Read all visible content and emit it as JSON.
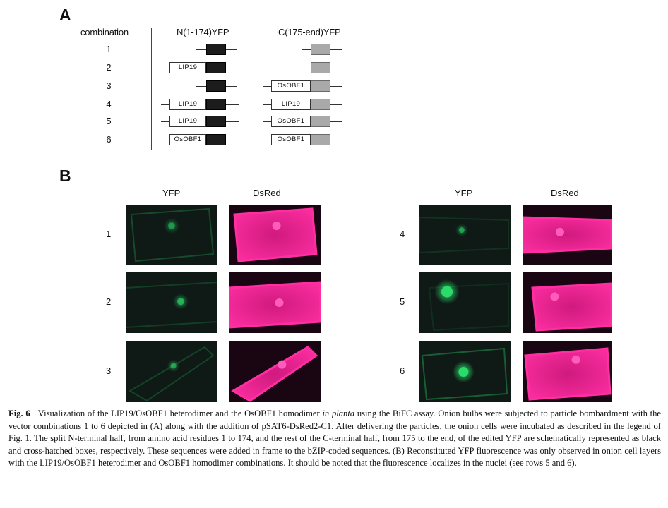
{
  "panel_a": {
    "letter": "A",
    "headers": {
      "combination": "combination",
      "n_half": "N(1-174)YFP",
      "c_half": "C(175-end)YFP"
    },
    "rows": [
      {
        "num": "1",
        "n_fusion": "",
        "c_fusion": ""
      },
      {
        "num": "2",
        "n_fusion": "LIP19",
        "c_fusion": ""
      },
      {
        "num": "3",
        "n_fusion": "",
        "c_fusion": "OsOBF1"
      },
      {
        "num": "4",
        "n_fusion": "LIP19",
        "c_fusion": "LIP19"
      },
      {
        "num": "5",
        "n_fusion": "LIP19",
        "c_fusion": "OsOBF1"
      },
      {
        "num": "6",
        "n_fusion": "OsOBF1",
        "c_fusion": "OsOBF1"
      }
    ],
    "colors": {
      "n_yfp": "#1c1c1c",
      "c_yfp": "#a9a9a9"
    }
  },
  "panel_b": {
    "letter": "B",
    "column_labels": {
      "yfp": "YFP",
      "dsred": "DsRed"
    },
    "rows": [
      {
        "num": "1"
      },
      {
        "num": "2"
      },
      {
        "num": "3"
      },
      {
        "num": "4"
      },
      {
        "num": "5"
      },
      {
        "num": "6"
      }
    ],
    "colors": {
      "yfp_background": "#0f1a16",
      "yfp_signal": "#2bdc6a",
      "dsred_signal": "#ff2fa3",
      "dsred_background": "#1a0512"
    }
  },
  "caption": {
    "label": "Fig. 6",
    "text_1": "Visualization of the LIP19/OsOBF1 heterodimer and the OsOBF1 homodimer ",
    "italic": "in planta",
    "text_2": " using the BiFC assay. Onion bulbs were subjected to particle bombardment with the vector combinations 1 to 6 depicted in (A) along with the addition of pSAT6-DsRed2-C1. After delivering the particles, the onion cells were incubated as described in the legend of Fig. 1. The split N-terminal half, from amino acid residues 1 to 174, and the rest of the C-terminal half, from 175 to the end, of the edited YFP are schematically represented as black and cross-hatched boxes, respectively. These sequences were added in frame to the bZIP-coded sequences. (B) Reconstituted YFP fluorescence was only observed in onion cell layers with the LIP19/OsOBF1 heterodimer and OsOBF1 homodimer combinations. It should be noted that the fluorescence localizes in the nuclei (see rows 5 and 6)."
  }
}
